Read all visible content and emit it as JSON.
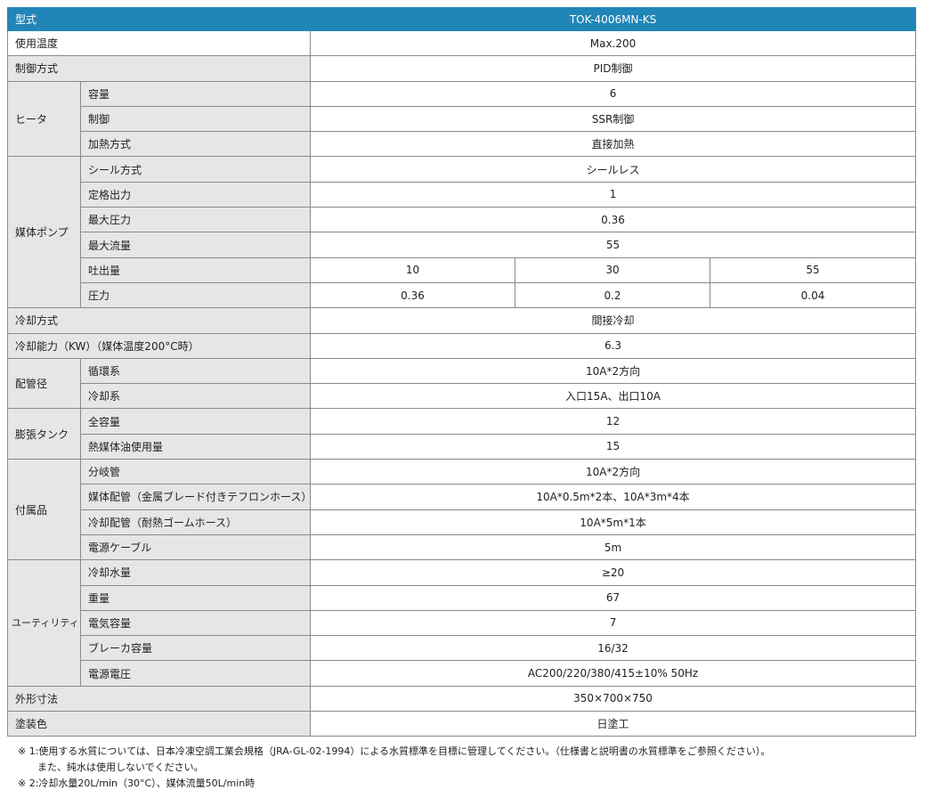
{
  "header": {
    "label": "型式",
    "model": "TOK-4006MN-KS"
  },
  "rows": {
    "temp": {
      "label": "使用温度",
      "value": "Max.200"
    },
    "control": {
      "label": "制御方式",
      "value": "PID制御"
    },
    "heater": {
      "label": "ヒータ",
      "capacity": {
        "label": "容量",
        "value": "6"
      },
      "ctrl": {
        "label": "制御",
        "value": "SSR制御"
      },
      "method": {
        "label": "加熱方式",
        "value": "直接加熱"
      }
    },
    "pump": {
      "label": "媒体ポンプ",
      "seal": {
        "label": "シール方式",
        "value": "シールレス"
      },
      "rated": {
        "label": "定格出力",
        "value": "1"
      },
      "maxp": {
        "label": "最大圧力",
        "value": "0.36"
      },
      "maxf": {
        "label": "最大流量",
        "value": "55"
      },
      "discharge": {
        "label": "吐出量",
        "values": [
          "10",
          "30",
          "55"
        ]
      },
      "pressure": {
        "label": "圧力",
        "values": [
          "0.36",
          "0.2",
          "0.04"
        ]
      }
    },
    "cooling": {
      "label": "冷却方式",
      "value": "間接冷却"
    },
    "cooling_cap": {
      "label": "冷却能力（KW）（媒体温度200°C時）",
      "value": "6.3"
    },
    "pipe": {
      "label": "配管径",
      "circ": {
        "label": "循環系",
        "value": "10A*2方向"
      },
      "cool": {
        "label": "冷却系",
        "value": "入口15A、出口10A"
      }
    },
    "tank": {
      "label": "膨張タンク",
      "total": {
        "label": "全容量",
        "value": "12"
      },
      "oil": {
        "label": "熱媒体油使用量",
        "value": "15"
      }
    },
    "acc": {
      "label": "付属品",
      "branch": {
        "label": "分岐管",
        "value": "10A*2方向"
      },
      "media": {
        "label": "媒体配管（金属ブレード付きテフロンホース）",
        "value": "10A*0.5m*2本、10A*3m*4本"
      },
      "coolp": {
        "label": "冷却配管（耐熱ゴームホース）",
        "value": "10A*5m*1本"
      },
      "cable": {
        "label": "電源ケーブル",
        "value": "5m"
      }
    },
    "util": {
      "label": "ユーティリティ",
      "water": {
        "label": "冷却水量",
        "value": "≥20"
      },
      "weight": {
        "label": "重量",
        "value": "67"
      },
      "elec": {
        "label": "電気容量",
        "value": "7"
      },
      "breaker": {
        "label": "ブレーカ容量",
        "value": "16/32"
      },
      "voltage": {
        "label": "電源電圧",
        "value": "AC200/220/380/415±10% 50Hz"
      }
    },
    "dims": {
      "label": "外形寸法",
      "value": "350×700×750"
    },
    "paint": {
      "label": "塗装色",
      "value": "日塗工"
    }
  },
  "notes": [
    "※ 1:使用する水質については、日本冷凍空調工業会規格（JRA-GL-02-1994）による水質標準を目標に管理してください。（仕様書と説明書の水質標準をご参照ください）。",
    "また、純水は使用しないでください。",
    "※ 2:冷却水量20L/min（30°C）、媒体流量50L/min時"
  ]
}
